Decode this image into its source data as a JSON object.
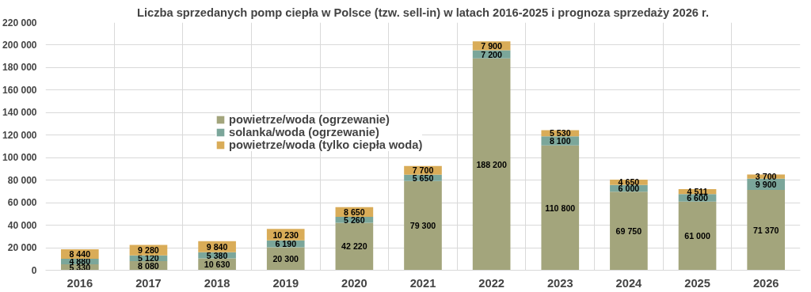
{
  "chart_data": {
    "type": "bar",
    "stacked": true,
    "title": "Liczba sprzedanych pomp ciepła w Polsce (tzw. sell-in) w latach 2016-2025 i prognoza sprzedaży 2026 r.",
    "categories": [
      "2016",
      "2017",
      "2018",
      "2019",
      "2020",
      "2021",
      "2022",
      "2023",
      "2024",
      "2025",
      "2026"
    ],
    "series": [
      {
        "name": "powietrze/woda (ogrzewanie)",
        "color": "#a3a57c",
        "values": [
          5330,
          8080,
          10630,
          20300,
          42220,
          79300,
          188200,
          110800,
          69750,
          61000,
          71370
        ],
        "value_labels": [
          "5 330",
          "8 080",
          "10 630",
          "20 300",
          "42 220",
          "79 300",
          "188 200",
          "110 800",
          "69 750",
          "61 000",
          "71 370"
        ]
      },
      {
        "name": "solanka/woda (ogrzewanie)",
        "color": "#7ba69a",
        "values": [
          4880,
          5120,
          5380,
          6190,
          5260,
          5650,
          7200,
          8100,
          6000,
          6600,
          9900
        ],
        "value_labels": [
          "4 880",
          "5 120",
          "5 380",
          "6 190",
          "5 260",
          "5 650",
          "7 200",
          "8 100",
          "6 000",
          "6 600",
          "9 900"
        ]
      },
      {
        "name": "powietrze/woda (tylko ciepła woda)",
        "color": "#d9ac58",
        "values": [
          8440,
          9280,
          9840,
          10230,
          8650,
          7700,
          7900,
          5530,
          4650,
          4511,
          3700
        ],
        "value_labels": [
          "8 440",
          "9 280",
          "9 840",
          "10 230",
          "8 650",
          "7 700",
          "7 900",
          "5 530",
          "4 650",
          "4 511",
          "3 700"
        ]
      }
    ],
    "ylim": [
      0,
      220000
    ],
    "yticks": [
      {
        "value": 0,
        "label": "0"
      },
      {
        "value": 20000,
        "label": "20 000"
      },
      {
        "value": 40000,
        "label": "40 000"
      },
      {
        "value": 60000,
        "label": "60 000"
      },
      {
        "value": 80000,
        "label": "80 000"
      },
      {
        "value": 100000,
        "label": "100 000"
      },
      {
        "value": 120000,
        "label": "120 000"
      },
      {
        "value": 140000,
        "label": "140 000"
      },
      {
        "value": 160000,
        "label": "160 000"
      },
      {
        "value": 180000,
        "label": "180 000"
      },
      {
        "value": 200000,
        "label": "200 000"
      },
      {
        "value": 220000,
        "label": "220 000"
      }
    ],
    "grid": true,
    "legend": "top left"
  }
}
